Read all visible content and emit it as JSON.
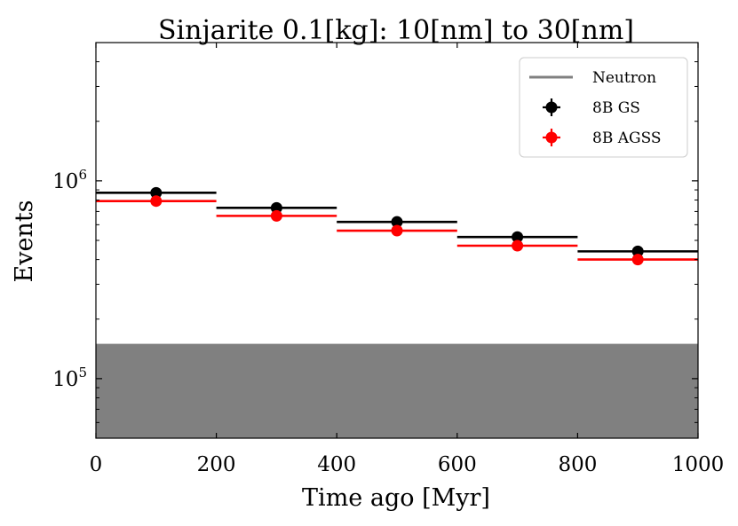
{
  "chart_data": {
    "type": "scatter",
    "title": "Sinjarite 0.1[kg]: 10[nm] to 30[nm]",
    "xlabel": "Time ago [Myr]",
    "ylabel": "Events",
    "xlim": [
      0,
      1000
    ],
    "ylim": [
      50000,
      5000000
    ],
    "yscale": "log",
    "grid": false,
    "legend_position": "top-right",
    "x_ticks": [
      0,
      200,
      400,
      600,
      800,
      1000
    ],
    "x_tick_labels": [
      "0",
      "200",
      "400",
      "600",
      "800",
      "1000"
    ],
    "y_ticks": [
      100000,
      1000000
    ],
    "y_tick_base": "10",
    "y_tick_exponents": [
      "5",
      "6"
    ],
    "background": {
      "name": "Neutron",
      "color": "#808080",
      "ylim": [
        50000,
        150000
      ]
    },
    "bins": [
      [
        0,
        200
      ],
      [
        200,
        400
      ],
      [
        400,
        600
      ],
      [
        600,
        800
      ],
      [
        800,
        1000
      ]
    ],
    "series": [
      {
        "name": "8B GS",
        "color": "#000000",
        "x": [
          100,
          300,
          500,
          700,
          900
        ],
        "values": [
          870000,
          730000,
          620000,
          520000,
          440000
        ]
      },
      {
        "name": "8B AGSS",
        "color": "#ff0000",
        "x": [
          100,
          300,
          500,
          700,
          900
        ],
        "values": [
          790000,
          665000,
          560000,
          470000,
          400000
        ]
      }
    ]
  }
}
